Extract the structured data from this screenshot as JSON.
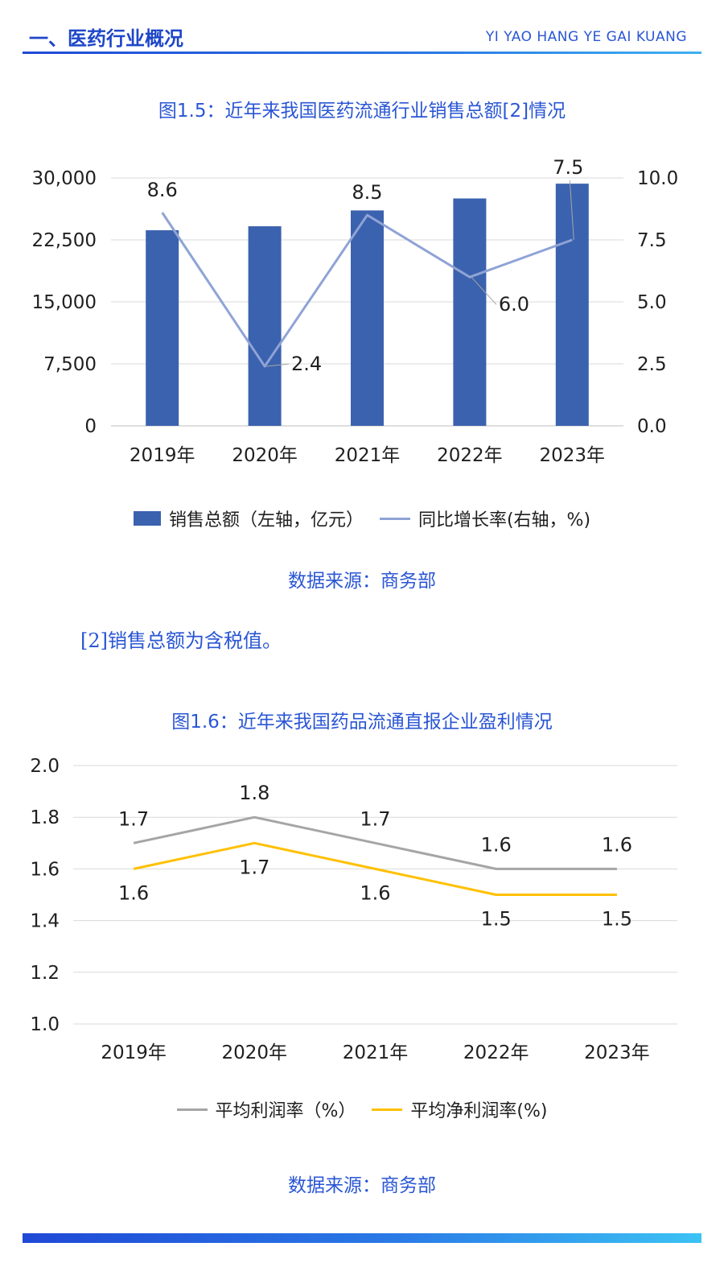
{
  "header": {
    "title": "一、医药行业概况",
    "subtitle": "YI YAO HANG YE GAI KUANG"
  },
  "figure1": {
    "title": "图1.5：近年来我国医药流通行业销售总额[2]情况",
    "source": "数据来源：商务部",
    "legend": {
      "bar": "销售总额（左轴，亿元）",
      "line": "同比增长率(右轴，%)"
    },
    "colors": {
      "bar": "#3b62ae",
      "line": "#8fa3d6"
    }
  },
  "footnote": "[2]销售总额为含税值。",
  "figure2": {
    "title": "图1.6：近年来我国药品流通直报企业盈利情况",
    "source": "数据来源：商务部",
    "legend": {
      "s1": "平均利润率（%）",
      "s2": "平均净利润率(%)"
    },
    "colors": {
      "s1": "#a5a5a5",
      "s2": "#ffc000"
    }
  },
  "chart_data": [
    {
      "type": "bar",
      "categories": [
        "2019年",
        "2020年",
        "2021年",
        "2022年",
        "2023年"
      ],
      "series": [
        {
          "name": "销售总额（左轴，亿元）",
          "type": "bar",
          "axis": "left",
          "values": [
            23667,
            24149,
            26064,
            27516,
            29304
          ]
        },
        {
          "name": "同比增长率(右轴，%)",
          "type": "line",
          "axis": "right",
          "values": [
            8.6,
            2.4,
            8.5,
            6.0,
            7.5
          ],
          "labels": [
            "8.6",
            "2.4",
            "8.5",
            "6.0",
            "7.5"
          ]
        }
      ],
      "left_axis": {
        "ylim": [
          0,
          30000
        ],
        "ticks": [
          0,
          7500,
          15000,
          22500,
          30000
        ],
        "tick_labels": [
          "0",
          "7,500",
          "15,000",
          "22,500",
          "30,000"
        ]
      },
      "right_axis": {
        "ylim": [
          0,
          10
        ],
        "ticks": [
          0,
          2.5,
          5,
          7.5,
          10
        ],
        "tick_labels": [
          "0.0",
          "2.5",
          "5.0",
          "7.5",
          "10.0"
        ]
      },
      "grid": true,
      "legend_position": "bottom"
    },
    {
      "type": "line",
      "categories": [
        "2019年",
        "2020年",
        "2021年",
        "2022年",
        "2023年"
      ],
      "series": [
        {
          "name": "平均利润率（%）",
          "values": [
            1.7,
            1.8,
            1.7,
            1.6,
            1.6
          ],
          "labels": [
            "1.7",
            "1.8",
            "1.7",
            "1.6",
            "1.6"
          ]
        },
        {
          "name": "平均净利润率(%)",
          "values": [
            1.6,
            1.7,
            1.6,
            1.5,
            1.5
          ],
          "labels": [
            "1.6",
            "1.7",
            "1.6",
            "1.5",
            "1.5"
          ]
        }
      ],
      "ylim": [
        1.0,
        2.0
      ],
      "ticks": [
        1.0,
        1.2,
        1.4,
        1.6,
        1.8,
        2.0
      ],
      "tick_labels": [
        "1.0",
        "1.2",
        "1.4",
        "1.6",
        "1.8",
        "2.0"
      ],
      "grid": true,
      "legend_position": "bottom"
    }
  ]
}
